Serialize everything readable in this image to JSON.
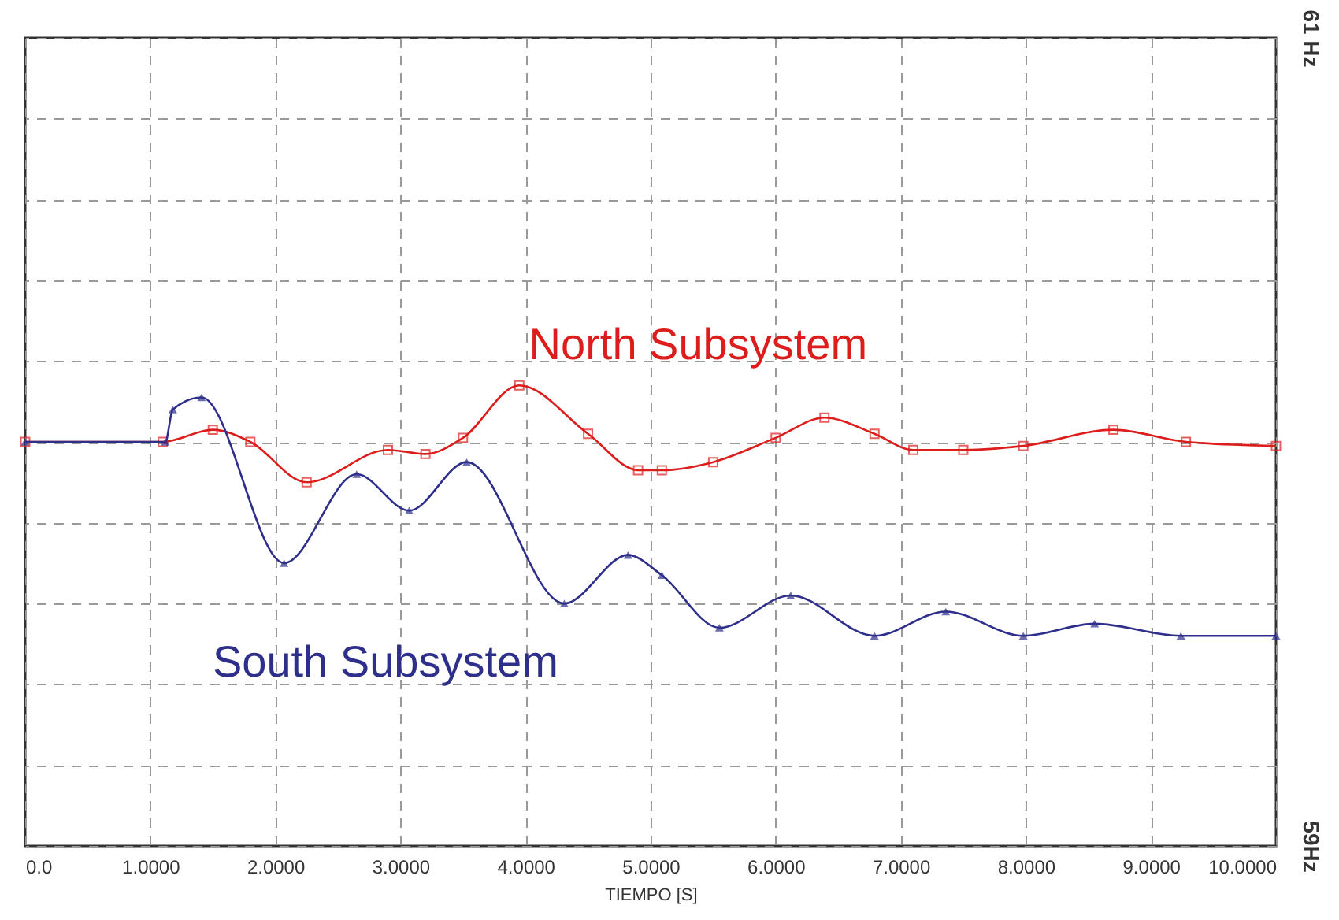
{
  "chart_data": {
    "type": "line",
    "xlabel": "TIEMPO [S]",
    "xlim": [
      0,
      10
    ],
    "xticks": [
      {
        "value": 0,
        "label": "0.0"
      },
      {
        "value": 1,
        "label": "1.0000"
      },
      {
        "value": 2,
        "label": "2.0000"
      },
      {
        "value": 3,
        "label": "3.0000"
      },
      {
        "value": 4,
        "label": "4.0000"
      },
      {
        "value": 5,
        "label": "5.0000"
      },
      {
        "value": 6,
        "label": "6.0000"
      },
      {
        "value": 7,
        "label": "7.0000"
      },
      {
        "value": 8,
        "label": "8.0000"
      },
      {
        "value": 9,
        "label": "9.0000"
      },
      {
        "value": 10,
        "label": "10.0000"
      }
    ],
    "ylim": [
      59,
      61
    ],
    "yticks": [
      {
        "value": 59,
        "label": "59Hz"
      },
      {
        "value": 59.2,
        "label": null
      },
      {
        "value": 59.4,
        "label": null
      },
      {
        "value": 59.6,
        "label": null
      },
      {
        "value": 59.8,
        "label": null
      },
      {
        "value": 60,
        "label": null
      },
      {
        "value": 60.2,
        "label": null
      },
      {
        "value": 60.4,
        "label": null
      },
      {
        "value": 60.6,
        "label": null
      },
      {
        "value": 60.8,
        "label": null
      },
      {
        "value": 61,
        "label": "61 Hz"
      }
    ],
    "grid": true,
    "line_style": "solid",
    "series": [
      {
        "name": "North Subsystem",
        "color": "#dd1c1c",
        "marker": "square",
        "x": [
          0,
          1.1,
          1.5,
          1.8,
          2.25,
          2.9,
          3.2,
          3.5,
          3.95,
          4.5,
          4.9,
          5.09,
          5.5,
          6.0,
          6.39,
          6.79,
          7.1,
          7.5,
          7.98,
          8.7,
          9.28,
          10
        ],
        "values": [
          60.0,
          60.0,
          60.03,
          60.0,
          59.9,
          59.98,
          59.97,
          60.01,
          60.14,
          60.02,
          59.93,
          59.93,
          59.95,
          60.01,
          60.06,
          60.02,
          59.98,
          59.98,
          59.99,
          60.03,
          60.0,
          59.99
        ]
      },
      {
        "name": "South Subsystem",
        "color": "#2e2f8a",
        "marker": "triangle",
        "x": [
          0,
          1.12,
          1.18,
          1.41,
          2.07,
          2.65,
          3.07,
          3.53,
          4.31,
          4.82,
          5.09,
          5.55,
          6.12,
          6.79,
          7.36,
          7.98,
          8.55,
          9.24,
          10
        ],
        "values": [
          60.0,
          60.0,
          60.08,
          60.11,
          59.7,
          59.92,
          59.83,
          59.95,
          59.6,
          59.72,
          59.67,
          59.54,
          59.62,
          59.52,
          59.58,
          59.52,
          59.55,
          59.52,
          59.52
        ]
      }
    ]
  }
}
